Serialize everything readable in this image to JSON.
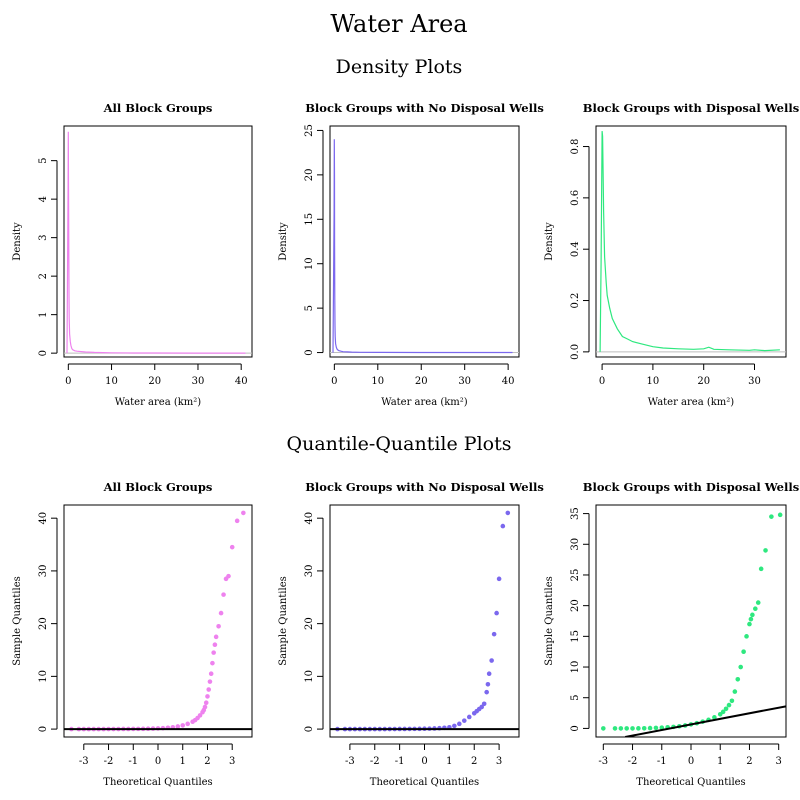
{
  "figure": {
    "title": "Water Area",
    "density_section_title": "Density Plots",
    "qq_section_title": "Quantile-Quantile Plots"
  },
  "chart_data": [
    {
      "type": "line",
      "title": "All Block Groups",
      "xlabel": "Water area (km²)",
      "ylabel": "Density",
      "color": "#EE82EE",
      "xlim": [
        -1,
        42.5
      ],
      "ylim": [
        -0.1,
        5.9
      ],
      "xticks": [
        0,
        10,
        20,
        30,
        40
      ],
      "yticks": [
        0,
        1,
        2,
        3,
        4,
        5
      ],
      "x": [
        -0.3,
        -0.05,
        0.0,
        0.05,
        0.1,
        0.15,
        0.2,
        0.3,
        0.45,
        0.6,
        0.8,
        1.0,
        1.5,
        2.0,
        3.0,
        4.0,
        6.0,
        8.0,
        10.0,
        15.0,
        20.0,
        30.0,
        41.0
      ],
      "y": [
        0.0,
        4.4,
        5.75,
        4.5,
        2.8,
        1.5,
        0.9,
        0.5,
        0.3,
        0.2,
        0.12,
        0.09,
        0.06,
        0.05,
        0.04,
        0.03,
        0.02,
        0.015,
        0.01,
        0.005,
        0.003,
        0.002,
        0.001
      ]
    },
    {
      "type": "line",
      "title": "Block Groups with No Disposal Wells",
      "xlabel": "Water area (km²)",
      "ylabel": "Density",
      "color": "#7B68EE",
      "xlim": [
        -1,
        42.5
      ],
      "ylim": [
        -0.5,
        25.5
      ],
      "xticks": [
        0,
        10,
        20,
        30,
        40
      ],
      "yticks": [
        0,
        5,
        10,
        15,
        20,
        25
      ],
      "x": [
        -0.3,
        -0.05,
        0.0,
        0.03,
        0.06,
        0.1,
        0.15,
        0.2,
        0.3,
        0.45,
        0.6,
        0.8,
        1.0,
        1.5,
        2.0,
        3.0,
        4.0,
        6.0,
        10.0,
        20.0,
        30.0,
        41.0
      ],
      "y": [
        0.0,
        16.0,
        24.0,
        20.0,
        12.0,
        6.0,
        3.0,
        1.8,
        1.0,
        0.6,
        0.4,
        0.3,
        0.22,
        0.15,
        0.1,
        0.07,
        0.05,
        0.03,
        0.02,
        0.01,
        0.005,
        0.003
      ]
    },
    {
      "type": "line",
      "title": "Block Groups with Disposal Wells",
      "xlabel": "Water area (km²)",
      "ylabel": "Density",
      "color": "#2EE87F",
      "xlim": [
        -1.2,
        36.2
      ],
      "ylim": [
        -0.02,
        0.88
      ],
      "xticks": [
        0,
        10,
        20,
        30
      ],
      "yticks": [
        0.0,
        0.2,
        0.4,
        0.6,
        0.8
      ],
      "x": [
        -0.4,
        -0.2,
        0.0,
        0.1,
        0.2,
        0.3,
        0.5,
        0.8,
        1.0,
        1.5,
        2.0,
        3.0,
        4.0,
        5.0,
        6.0,
        8.0,
        10.0,
        12.0,
        15.0,
        18.0,
        20.0,
        21.0,
        22.0,
        25.0,
        29.0,
        30.0,
        32.0,
        35.0
      ],
      "y": [
        0.0,
        0.35,
        0.86,
        0.84,
        0.7,
        0.55,
        0.37,
        0.27,
        0.22,
        0.17,
        0.13,
        0.09,
        0.06,
        0.05,
        0.04,
        0.03,
        0.02,
        0.015,
        0.012,
        0.01,
        0.012,
        0.018,
        0.01,
        0.008,
        0.006,
        0.008,
        0.005,
        0.008
      ]
    },
    {
      "type": "scatter",
      "title": "All Block Groups",
      "xlabel": "Theoretical Quantiles",
      "ylabel": "Sample Quantiles",
      "color": "#EE82EE",
      "xlim": [
        -3.8,
        3.8
      ],
      "ylim": [
        -1.5,
        42.5
      ],
      "xticks": [
        -3,
        -2,
        -1,
        0,
        1,
        2,
        3
      ],
      "yticks": [
        0,
        10,
        20,
        30,
        40
      ],
      "x": [
        -3.5,
        -3.2,
        -3.0,
        -2.8,
        -2.6,
        -2.4,
        -2.2,
        -2.0,
        -1.8,
        -1.6,
        -1.4,
        -1.2,
        -1.0,
        -0.8,
        -0.6,
        -0.4,
        -0.2,
        0.0,
        0.2,
        0.4,
        0.6,
        0.8,
        1.0,
        1.2,
        1.4,
        1.5,
        1.6,
        1.7,
        1.8,
        1.85,
        1.9,
        1.95,
        2.0,
        2.05,
        2.1,
        2.15,
        2.2,
        2.25,
        2.3,
        2.35,
        2.45,
        2.55,
        2.65,
        2.75,
        2.85,
        3.0,
        3.2,
        3.45
      ],
      "y": [
        0.0,
        0.0,
        0.0,
        0.0,
        0.0,
        0.0,
        0.0,
        0.01,
        0.01,
        0.01,
        0.02,
        0.02,
        0.03,
        0.04,
        0.05,
        0.07,
        0.1,
        0.13,
        0.18,
        0.25,
        0.35,
        0.5,
        0.7,
        1.0,
        1.4,
        1.7,
        2.1,
        2.6,
        3.2,
        3.6,
        4.2,
        5.0,
        6.2,
        7.5,
        9.0,
        10.5,
        12.5,
        14.5,
        16.0,
        17.5,
        19.5,
        22.0,
        25.5,
        28.5,
        29.0,
        34.5,
        39.5,
        41.0
      ]
    },
    {
      "type": "scatter",
      "title": "Block Groups with No Disposal Wells",
      "xlabel": "Theoretical Quantiles",
      "ylabel": "Sample Quantiles",
      "color": "#7B68EE",
      "xlim": [
        -3.8,
        3.8
      ],
      "ylim": [
        -1.5,
        42.5
      ],
      "xticks": [
        -3,
        -2,
        -1,
        0,
        1,
        2,
        3
      ],
      "yticks": [
        0,
        10,
        20,
        30,
        40
      ],
      "x": [
        -3.5,
        -3.2,
        -3.0,
        -2.8,
        -2.6,
        -2.4,
        -2.2,
        -2.0,
        -1.8,
        -1.6,
        -1.4,
        -1.2,
        -1.0,
        -0.8,
        -0.6,
        -0.4,
        -0.2,
        0.0,
        0.2,
        0.4,
        0.6,
        0.8,
        1.0,
        1.2,
        1.4,
        1.6,
        1.8,
        2.0,
        2.1,
        2.2,
        2.3,
        2.4,
        2.5,
        2.55,
        2.6,
        2.7,
        2.8,
        2.9,
        3.0,
        3.15,
        3.35
      ],
      "y": [
        0.0,
        0.0,
        0.0,
        0.0,
        0.0,
        0.0,
        0.0,
        0.0,
        0.0,
        0.0,
        0.01,
        0.01,
        0.02,
        0.02,
        0.03,
        0.04,
        0.05,
        0.07,
        0.09,
        0.12,
        0.17,
        0.25,
        0.35,
        0.6,
        1.0,
        1.6,
        2.3,
        3.0,
        3.4,
        3.8,
        4.2,
        4.8,
        7.0,
        8.5,
        10.5,
        13.0,
        18.0,
        22.0,
        28.5,
        38.5,
        41.0
      ]
    },
    {
      "type": "scatter",
      "title": "Block Groups with Disposal Wells",
      "xlabel": "Theoretical Quantiles",
      "ylabel": "Sample Quantiles",
      "color": "#2EE87F",
      "xlim": [
        -3.25,
        3.25
      ],
      "ylim": [
        -1.4,
        36.4
      ],
      "xticks": [
        -3,
        -2,
        -1,
        0,
        1,
        2,
        3
      ],
      "yticks": [
        0,
        5,
        10,
        15,
        20,
        25,
        30,
        35
      ],
      "reference_line": {
        "x": [
          -2.25,
          3.25
        ],
        "y": [
          -1.4,
          3.6
        ]
      },
      "x": [
        -3.0,
        -2.6,
        -2.4,
        -2.2,
        -2.0,
        -1.8,
        -1.6,
        -1.4,
        -1.2,
        -1.0,
        -0.8,
        -0.6,
        -0.4,
        -0.2,
        0.0,
        0.2,
        0.4,
        0.6,
        0.8,
        1.0,
        1.1,
        1.2,
        1.3,
        1.4,
        1.5,
        1.6,
        1.7,
        1.8,
        1.9,
        2.0,
        2.05,
        2.1,
        2.2,
        2.3,
        2.4,
        2.55,
        2.75,
        3.05
      ],
      "y": [
        0.0,
        0.0,
        0.0,
        0.0,
        0.0,
        0.01,
        0.02,
        0.05,
        0.08,
        0.12,
        0.18,
        0.25,
        0.35,
        0.48,
        0.65,
        0.85,
        1.1,
        1.4,
        1.8,
        2.3,
        2.7,
        3.2,
        3.8,
        4.5,
        6.0,
        8.0,
        10.0,
        12.5,
        15.0,
        17.0,
        17.8,
        18.5,
        19.5,
        20.5,
        26.0,
        29.0,
        34.5,
        34.8
      ]
    }
  ]
}
